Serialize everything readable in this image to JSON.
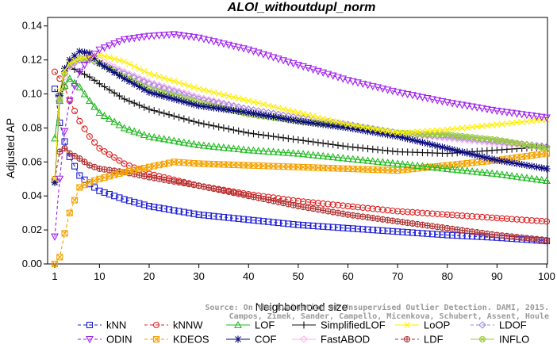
{
  "chart_data": {
    "type": "line",
    "title": "ALOI_withoutdupl_norm",
    "xlabel": "Neighborhood size",
    "ylabel": "Adjusted AP",
    "xlim": [
      1,
      100
    ],
    "ylim": [
      0,
      0.145
    ],
    "xticks": [
      1,
      10,
      20,
      30,
      40,
      50,
      60,
      70,
      80,
      90,
      100
    ],
    "yticks": [
      "0.00",
      "0.02",
      "0.04",
      "0.06",
      "0.08",
      "0.10",
      "0.12",
      "0.14"
    ],
    "grid": false,
    "legend_position": "bottom",
    "watermark": [
      "Source: On the Evaluation of Unsupervised Outlier Detection. DAMI, 2015.",
      "Campos, Zimek, Sander, Campello, Micenkova, Schubert, Assent, Houle"
    ],
    "series": [
      {
        "name": "kNN",
        "color": "#1f1fd6",
        "marker": "square",
        "dash": "4,3",
        "points": [
          [
            1,
            0.103
          ],
          [
            2,
            0.083
          ],
          [
            3,
            0.072
          ],
          [
            4,
            0.063
          ],
          [
            6,
            0.052
          ],
          [
            8,
            0.047
          ],
          [
            10,
            0.043
          ],
          [
            15,
            0.038
          ],
          [
            20,
            0.034
          ],
          [
            30,
            0.029
          ],
          [
            40,
            0.026
          ],
          [
            50,
            0.023
          ],
          [
            60,
            0.021
          ],
          [
            70,
            0.019
          ],
          [
            80,
            0.017
          ],
          [
            90,
            0.0155
          ],
          [
            100,
            0.0135
          ]
        ]
      },
      {
        "name": "kNNW",
        "color": "#e02020",
        "marker": "circle",
        "dash": "4,3",
        "points": [
          [
            1,
            0.113
          ],
          [
            2,
            0.109
          ],
          [
            3,
            0.104
          ],
          [
            4,
            0.096
          ],
          [
            6,
            0.084
          ],
          [
            8,
            0.075
          ],
          [
            10,
            0.068
          ],
          [
            15,
            0.059
          ],
          [
            20,
            0.053
          ],
          [
            30,
            0.046
          ],
          [
            40,
            0.041
          ],
          [
            50,
            0.037
          ],
          [
            60,
            0.034
          ],
          [
            70,
            0.031
          ],
          [
            80,
            0.029
          ],
          [
            90,
            0.027
          ],
          [
            100,
            0.025
          ]
        ]
      },
      {
        "name": "LOF",
        "color": "#22bb22",
        "marker": "triangle",
        "dash": "",
        "points": [
          [
            1,
            0.074
          ],
          [
            2,
            0.096
          ],
          [
            3,
            0.105
          ],
          [
            4,
            0.109
          ],
          [
            6,
            0.104
          ],
          [
            8,
            0.096
          ],
          [
            10,
            0.089
          ],
          [
            15,
            0.08
          ],
          [
            20,
            0.075
          ],
          [
            30,
            0.07
          ],
          [
            40,
            0.067
          ],
          [
            50,
            0.065
          ],
          [
            60,
            0.062
          ],
          [
            70,
            0.059
          ],
          [
            80,
            0.056
          ],
          [
            90,
            0.053
          ],
          [
            100,
            0.049
          ]
        ]
      },
      {
        "name": "SimplifiedLOF",
        "color": "#111111",
        "marker": "plus",
        "dash": "",
        "points": [
          [
            1,
            0.048
          ],
          [
            2,
            0.099
          ],
          [
            3,
            0.113
          ],
          [
            4,
            0.116
          ],
          [
            6,
            0.113
          ],
          [
            8,
            0.11
          ],
          [
            10,
            0.106
          ],
          [
            15,
            0.097
          ],
          [
            20,
            0.091
          ],
          [
            30,
            0.083
          ],
          [
            40,
            0.077
          ],
          [
            50,
            0.073
          ],
          [
            60,
            0.069
          ],
          [
            70,
            0.066
          ],
          [
            80,
            0.065
          ],
          [
            90,
            0.067
          ],
          [
            100,
            0.069
          ]
        ]
      },
      {
        "name": "LoOP",
        "color": "#ffee00",
        "marker": "cross",
        "dash": "",
        "points": [
          [
            1,
            0.05
          ],
          [
            2,
            0.102
          ],
          [
            3,
            0.114
          ],
          [
            4,
            0.118
          ],
          [
            6,
            0.121
          ],
          [
            8,
            0.122
          ],
          [
            10,
            0.123
          ],
          [
            15,
            0.119
          ],
          [
            20,
            0.112
          ],
          [
            30,
            0.103
          ],
          [
            40,
            0.096
          ],
          [
            50,
            0.089
          ],
          [
            60,
            0.082
          ],
          [
            70,
            0.077
          ],
          [
            80,
            0.079
          ],
          [
            90,
            0.082
          ],
          [
            100,
            0.085
          ]
        ]
      },
      {
        "name": "LDOF",
        "color": "#9b8be0",
        "marker": "diamond",
        "dash": "4,3",
        "points": [
          [
            1,
            0.048
          ],
          [
            2,
            0.096
          ],
          [
            3,
            0.112
          ],
          [
            4,
            0.117
          ],
          [
            6,
            0.12
          ],
          [
            8,
            0.12
          ],
          [
            10,
            0.118
          ],
          [
            15,
            0.112
          ],
          [
            20,
            0.106
          ],
          [
            30,
            0.097
          ],
          [
            40,
            0.091
          ],
          [
            50,
            0.086
          ],
          [
            60,
            0.082
          ],
          [
            70,
            0.077
          ],
          [
            80,
            0.075
          ],
          [
            90,
            0.072
          ],
          [
            100,
            0.069
          ]
        ]
      },
      {
        "name": "ODIN",
        "color": "#a020f0",
        "marker": "triangle-down",
        "dash": "4,3",
        "points": [
          [
            1,
            0.016
          ],
          [
            2,
            0.05
          ],
          [
            3,
            0.078
          ],
          [
            4,
            0.096
          ],
          [
            6,
            0.113
          ],
          [
            8,
            0.121
          ],
          [
            10,
            0.126
          ],
          [
            15,
            0.132
          ],
          [
            20,
            0.134
          ],
          [
            25,
            0.135
          ],
          [
            30,
            0.133
          ],
          [
            40,
            0.126
          ],
          [
            50,
            0.117
          ],
          [
            60,
            0.108
          ],
          [
            70,
            0.101
          ],
          [
            80,
            0.095
          ],
          [
            90,
            0.09
          ],
          [
            100,
            0.086
          ]
        ]
      },
      {
        "name": "KDEOS",
        "color": "#f5a200",
        "marker": "square-x",
        "dash": "4,3",
        "points": [
          [
            1,
            0.0
          ],
          [
            2,
            0.004
          ],
          [
            3,
            0.018
          ],
          [
            4,
            0.03
          ],
          [
            6,
            0.045
          ],
          [
            8,
            0.048
          ],
          [
            10,
            0.05
          ],
          [
            15,
            0.054
          ],
          [
            20,
            0.057
          ],
          [
            25,
            0.06
          ],
          [
            30,
            0.059
          ],
          [
            40,
            0.058
          ],
          [
            50,
            0.057
          ],
          [
            60,
            0.056
          ],
          [
            70,
            0.055
          ],
          [
            80,
            0.058
          ],
          [
            90,
            0.061
          ],
          [
            100,
            0.065
          ]
        ]
      },
      {
        "name": "COF",
        "color": "#0a0a80",
        "marker": "asterisk",
        "dash": "",
        "points": [
          [
            1,
            0.048
          ],
          [
            2,
            0.1
          ],
          [
            3,
            0.115
          ],
          [
            4,
            0.12
          ],
          [
            6,
            0.125
          ],
          [
            8,
            0.124
          ],
          [
            10,
            0.118
          ],
          [
            15,
            0.109
          ],
          [
            20,
            0.101
          ],
          [
            30,
            0.093
          ],
          [
            40,
            0.089
          ],
          [
            50,
            0.084
          ],
          [
            60,
            0.08
          ],
          [
            70,
            0.075
          ],
          [
            80,
            0.068
          ],
          [
            90,
            0.061
          ],
          [
            100,
            0.056
          ]
        ]
      },
      {
        "name": "FastABOD",
        "color": "#ffb0f0",
        "marker": "diamond",
        "dash": "",
        "points": [
          [
            1,
            0.049
          ],
          [
            2,
            0.098
          ],
          [
            3,
            0.11
          ],
          [
            4,
            0.116
          ],
          [
            6,
            0.12
          ],
          [
            8,
            0.121
          ],
          [
            10,
            0.12
          ],
          [
            15,
            0.113
          ],
          [
            20,
            0.107
          ],
          [
            30,
            0.098
          ],
          [
            40,
            0.091
          ],
          [
            50,
            0.086
          ],
          [
            60,
            0.081
          ],
          [
            70,
            0.077
          ],
          [
            80,
            0.074
          ],
          [
            90,
            0.071
          ],
          [
            100,
            0.069
          ]
        ]
      },
      {
        "name": "LDF",
        "color": "#b03030",
        "marker": "circle-plus",
        "dash": "4,3",
        "points": [
          [
            1,
            0.05
          ],
          [
            2,
            0.066
          ],
          [
            3,
            0.068
          ],
          [
            4,
            0.065
          ],
          [
            6,
            0.062
          ],
          [
            8,
            0.058
          ],
          [
            10,
            0.056
          ],
          [
            15,
            0.054
          ],
          [
            20,
            0.051
          ],
          [
            30,
            0.046
          ],
          [
            40,
            0.04
          ],
          [
            50,
            0.034
          ],
          [
            60,
            0.029
          ],
          [
            70,
            0.025
          ],
          [
            80,
            0.021
          ],
          [
            90,
            0.017
          ],
          [
            100,
            0.014
          ]
        ]
      },
      {
        "name": "INFLO",
        "color": "#99cc33",
        "marker": "circle-x",
        "dash": "",
        "points": [
          [
            1,
            0.048
          ],
          [
            2,
            0.097
          ],
          [
            3,
            0.112
          ],
          [
            4,
            0.118
          ],
          [
            6,
            0.121
          ],
          [
            8,
            0.121
          ],
          [
            10,
            0.118
          ],
          [
            15,
            0.11
          ],
          [
            20,
            0.103
          ],
          [
            30,
            0.095
          ],
          [
            40,
            0.088
          ],
          [
            50,
            0.084
          ],
          [
            60,
            0.081
          ],
          [
            70,
            0.077
          ],
          [
            80,
            0.076
          ],
          [
            90,
            0.073
          ],
          [
            100,
            0.068
          ]
        ]
      }
    ]
  }
}
